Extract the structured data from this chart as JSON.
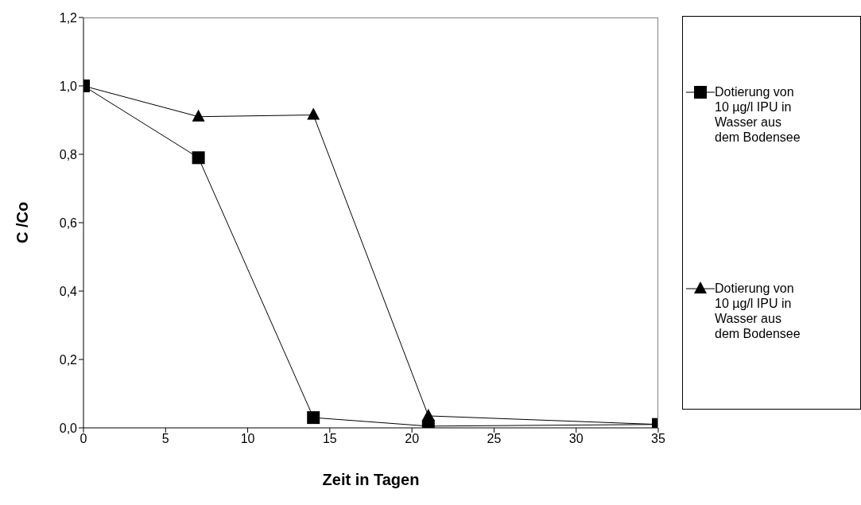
{
  "chart_data": {
    "type": "line",
    "xlabel": "Zeit in Tagen",
    "ylabel": "C /Co",
    "x": [
      0,
      7,
      14,
      21,
      35
    ],
    "series": [
      {
        "name": "Dotierung von 10 µg/l IPU in Wasser aus dem Bodensee",
        "color": "#000000",
        "marker": "square",
        "values": [
          1.0,
          0.79,
          0.03,
          0.005,
          0.01
        ]
      },
      {
        "name": "Dotierung von 10 µg/l IPU in Wasser aus dem Bodensee",
        "color": "#000000",
        "marker": "triangle",
        "values": [
          1.0,
          0.91,
          0.915,
          0.035,
          0.01
        ]
      }
    ],
    "xlim": [
      0,
      35
    ],
    "xticks": [
      0,
      5,
      10,
      15,
      20,
      25,
      30,
      35
    ],
    "ylim": [
      0,
      1.2
    ],
    "yticks": [
      {
        "value": 0,
        "label": "0,0"
      },
      {
        "value": 0.2,
        "label": "0,2"
      },
      {
        "value": 0.4,
        "label": "0,4"
      },
      {
        "value": 0.6,
        "label": "0,6"
      },
      {
        "value": 0.8,
        "label": "0,8"
      },
      {
        "value": 1,
        "label": "1,0"
      },
      {
        "value": 1.2,
        "label": "1,2"
      }
    ],
    "grid": false,
    "legend": "right",
    "line_style": "solid"
  }
}
